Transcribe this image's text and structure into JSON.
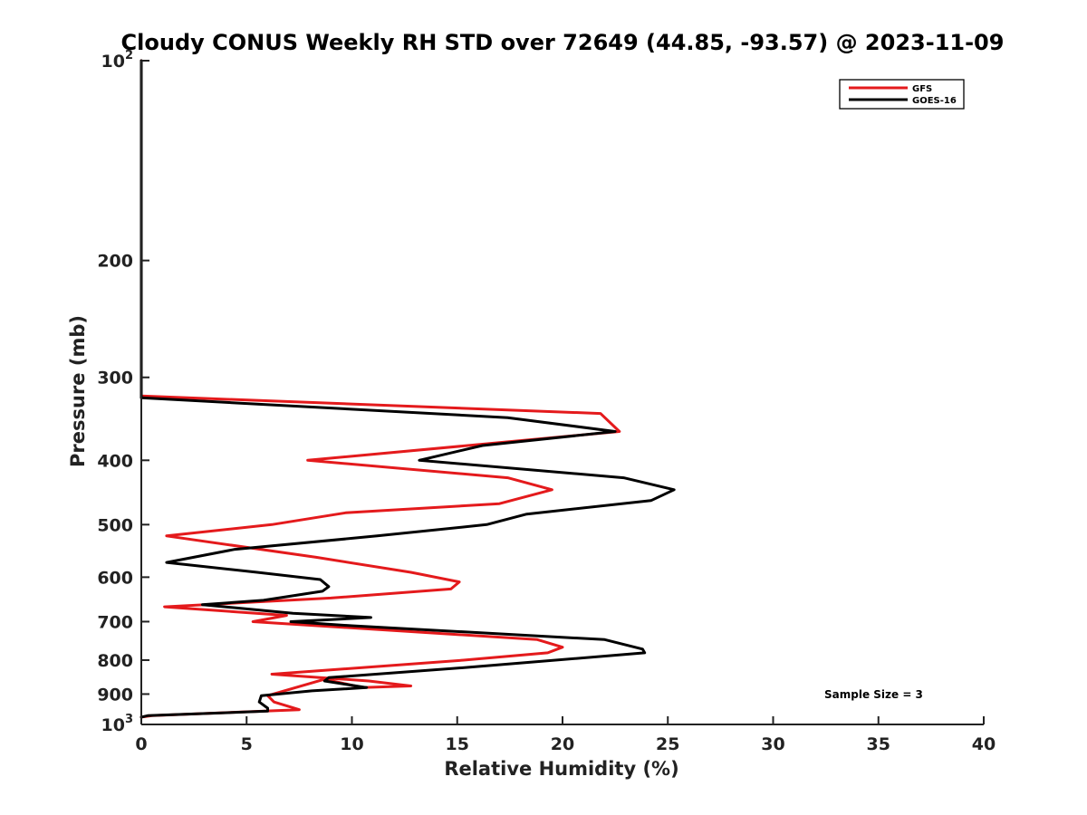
{
  "chart_data": {
    "type": "line",
    "title": "Cloudy CONUS Weekly RH STD over 72649 (44.85, -93.57) @ 2023-11-09",
    "xlabel": "Relative Humidity (%)",
    "ylabel": "Pressure (mb)",
    "xlim": [
      0,
      40
    ],
    "ylim": [
      100,
      1000
    ],
    "y_scale": "log",
    "y_reversed": true,
    "x_ticks": [
      "0",
      "5",
      "10",
      "15",
      "20",
      "25",
      "30",
      "35",
      "40"
    ],
    "y_ticks": [
      {
        "value": 100,
        "base": "10",
        "exp": "2"
      },
      {
        "value": 200,
        "label": "200"
      },
      {
        "value": 300,
        "label": "300"
      },
      {
        "value": 400,
        "label": "400"
      },
      {
        "value": 500,
        "label": "500"
      },
      {
        "value": 600,
        "label": "600"
      },
      {
        "value": 700,
        "label": "700"
      },
      {
        "value": 800,
        "label": "800"
      },
      {
        "value": 900,
        "label": "900"
      },
      {
        "value": 1000,
        "base": "10",
        "exp": "3"
      }
    ],
    "grid": false,
    "legend_position": "top-right",
    "series": [
      {
        "name": "GFS",
        "color": "#e41a1c",
        "points": [
          [
            0,
            100
          ],
          [
            0,
            320
          ],
          [
            21.8,
            340
          ],
          [
            22.7,
            362
          ],
          [
            15.5,
            380
          ],
          [
            7.9,
            400
          ],
          [
            17.4,
            425
          ],
          [
            19.5,
            443
          ],
          [
            17.0,
            465
          ],
          [
            9.7,
            480
          ],
          [
            6.2,
            500
          ],
          [
            1.2,
            520
          ],
          [
            8.3,
            560
          ],
          [
            12.8,
            590
          ],
          [
            15.1,
            610
          ],
          [
            14.7,
            625
          ],
          [
            9.0,
            645
          ],
          [
            1.1,
            665
          ],
          [
            6.9,
            685
          ],
          [
            5.3,
            700
          ],
          [
            18.8,
            745
          ],
          [
            20.0,
            765
          ],
          [
            19.3,
            780
          ],
          [
            15.3,
            800
          ],
          [
            6.2,
            840
          ],
          [
            10.8,
            860
          ],
          [
            12.8,
            875
          ],
          [
            10.5,
            880
          ],
          [
            8.7,
            855
          ],
          [
            6.0,
            905
          ],
          [
            6.3,
            925
          ],
          [
            7.5,
            950
          ],
          [
            0.5,
            970
          ],
          [
            0,
            975
          ]
        ]
      },
      {
        "name": "GOES-16",
        "color": "#000000",
        "points": [
          [
            0,
            100
          ],
          [
            0,
            322
          ],
          [
            17.4,
            345
          ],
          [
            22.5,
            362
          ],
          [
            16.2,
            380
          ],
          [
            13.2,
            400
          ],
          [
            22.9,
            425
          ],
          [
            25.3,
            443
          ],
          [
            24.2,
            460
          ],
          [
            18.3,
            482
          ],
          [
            16.4,
            500
          ],
          [
            11.2,
            520
          ],
          [
            4.4,
            545
          ],
          [
            1.2,
            570
          ],
          [
            5.5,
            590
          ],
          [
            8.5,
            605
          ],
          [
            8.9,
            620
          ],
          [
            8.6,
            630
          ],
          [
            5.8,
            650
          ],
          [
            2.9,
            660
          ],
          [
            7.2,
            680
          ],
          [
            10.9,
            690
          ],
          [
            7.1,
            700
          ],
          [
            10.0,
            710
          ],
          [
            22.0,
            745
          ],
          [
            23.8,
            770
          ],
          [
            23.9,
            780
          ],
          [
            15.6,
            820
          ],
          [
            8.9,
            850
          ],
          [
            8.7,
            860
          ],
          [
            10.7,
            880
          ],
          [
            8.1,
            890
          ],
          [
            5.7,
            905
          ],
          [
            5.6,
            925
          ],
          [
            6.0,
            945
          ],
          [
            6.0,
            955
          ],
          [
            0.3,
            970
          ],
          [
            0,
            975
          ]
        ]
      }
    ],
    "annotations": [
      "Sample Size = 3"
    ]
  }
}
